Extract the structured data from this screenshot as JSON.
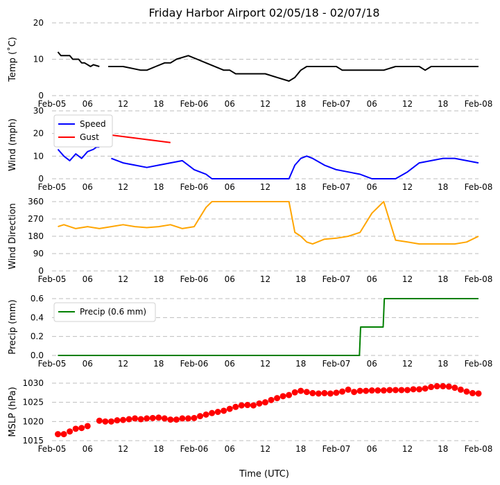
{
  "chart_data": {
    "title": "Friday Harbor Airport 02/05/18 - 02/07/18",
    "xlabel": "Time (UTC)",
    "x_range": [
      "2018-02-05 00:00",
      "2018-02-08 00:00"
    ],
    "x_tick_labels": [
      "Feb-05",
      "06",
      "12",
      "18",
      "Feb-06",
      "06",
      "12",
      "18",
      "Feb-07",
      "06",
      "12",
      "18",
      "Feb-08"
    ],
    "grid": "horizontal dashed",
    "panels": [
      {
        "type": "line",
        "ylabel": "Temp ($^\\circ$C)",
        "ylabel_display": "Temp (˚C)",
        "ylim": [
          0,
          20
        ],
        "yticks": [
          0,
          10,
          20
        ],
        "series": [
          {
            "color": "#000000",
            "x_hours": [
              1,
              1.5,
              3,
              3.5,
              4.5,
              5,
              5.5,
              6.5,
              7,
              8,
              8.5,
              9.5,
              10,
              12,
              15,
              16,
              17.5,
              19,
              20,
              21,
              23,
              24.5,
              26,
              29,
              30,
              31,
              32,
              33,
              34,
              35,
              36,
              38,
              40,
              41,
              42,
              43,
              45,
              46,
              48,
              49,
              50,
              52,
              54,
              56,
              58,
              60,
              62,
              63,
              64,
              66,
              68,
              70,
              72
            ],
            "values": [
              12,
              11,
              11,
              10,
              10,
              9,
              9,
              8,
              8.5,
              8,
              null,
              8,
              8,
              8,
              7,
              7,
              8,
              9,
              9,
              10,
              11,
              10,
              9,
              7,
              7,
              6,
              6,
              6,
              6,
              6,
              6,
              5,
              4,
              5,
              7,
              8,
              8,
              8,
              8,
              7,
              7,
              7,
              7,
              7,
              8,
              8,
              8,
              7,
              8,
              8,
              8,
              8,
              8
            ]
          }
        ]
      },
      {
        "type": "line",
        "ylabel": "Wind (mph)",
        "ylim": [
          0,
          30
        ],
        "yticks": [
          0,
          10,
          20,
          30
        ],
        "legend": "top-left",
        "series": [
          {
            "name": "Speed",
            "color": "#0000ff",
            "x_hours": [
              1,
              2,
              3,
              4,
              5,
              6,
              7,
              7.5,
              8,
              9,
              10,
              12,
              14,
              16,
              18,
              20,
              22,
              23,
              24,
              25,
              26,
              27,
              28,
              30,
              32,
              36,
              40,
              41,
              42,
              43,
              44,
              46,
              48,
              50,
              52,
              54,
              56,
              58,
              60,
              62,
              64,
              66,
              68,
              70,
              72
            ],
            "values": [
              13,
              10,
              8,
              11,
              9,
              12,
              13,
              14,
              14,
              null,
              9,
              7,
              6,
              5,
              6,
              7,
              8,
              6,
              4,
              3,
              2,
              0,
              0,
              0,
              0,
              0,
              0,
              6,
              9,
              10,
              9,
              6,
              4,
              3,
              2,
              0,
              0,
              0,
              3,
              7,
              8,
              9,
              9,
              8,
              7
            ]
          },
          {
            "name": "Gust",
            "color": "#ff0000",
            "x_hours": [
              2,
              4,
              5,
              6,
              7,
              8,
              20
            ],
            "values": [
              18,
              16,
              20,
              23,
              22,
              20,
              16
            ]
          }
        ]
      },
      {
        "type": "line",
        "ylabel": "Wind Direction",
        "ylim": [
          0,
          360
        ],
        "yticks": [
          0,
          90,
          180,
          270,
          360
        ],
        "series": [
          {
            "color": "#ffa500",
            "x_hours": [
              1,
              2,
              4,
              6,
              8,
              10,
              12,
              14,
              16,
              18,
              20,
              22,
              24,
              25,
              26,
              27,
              28,
              30,
              32,
              36,
              40,
              41,
              42,
              43,
              44,
              46,
              48,
              50,
              52,
              54,
              56,
              58,
              60,
              62,
              64,
              66,
              68,
              70,
              72
            ],
            "values": [
              230,
              240,
              220,
              230,
              220,
              230,
              240,
              230,
              225,
              230,
              240,
              220,
              230,
              280,
              330,
              360,
              360,
              360,
              360,
              360,
              360,
              200,
              180,
              150,
              140,
              165,
              170,
              180,
              200,
              300,
              360,
              160,
              150,
              140,
              140,
              140,
              140,
              150,
              180
            ]
          }
        ]
      },
      {
        "type": "line",
        "ylabel": "Precip (mm)",
        "ylim": [
          0,
          0.6
        ],
        "yticks": [
          0.0,
          0.2,
          0.4,
          0.6
        ],
        "legend": "top-left",
        "series": [
          {
            "name": "Precip (0.6 mm)",
            "color": "#008000",
            "x_hours": [
              1,
              51.9,
              52.1,
              55.9,
              56.1,
              72
            ],
            "values": [
              0,
              0,
              0.3,
              0.3,
              0.6,
              0.6
            ]
          }
        ]
      },
      {
        "type": "scatter",
        "ylabel": "MSLP (hPa)",
        "ylim": [
          1015,
          1030
        ],
        "yticks": [
          1015,
          1020,
          1025,
          1030
        ],
        "series": [
          {
            "color": "#ff0000",
            "x_hours": [
              1,
              2,
              3,
              4,
              5,
              6,
              8,
              9,
              10,
              11,
              12,
              13,
              14,
              15,
              16,
              17,
              18,
              19,
              20,
              21,
              22,
              23,
              24,
              25,
              26,
              27,
              28,
              29,
              30,
              31,
              32,
              33,
              34,
              35,
              36,
              37,
              38,
              39,
              40,
              41,
              42,
              43,
              44,
              45,
              46,
              47,
              48,
              49,
              50,
              51,
              52,
              53,
              54,
              55,
              56,
              57,
              58,
              59,
              60,
              61,
              62,
              63,
              64,
              65,
              66,
              67,
              68,
              69,
              70,
              71,
              72
            ],
            "values": [
              1016.7,
              1016.7,
              1017.4,
              1018.1,
              1018.3,
              1018.8,
              1020.2,
              1020.0,
              1020.0,
              1020.3,
              1020.4,
              1020.6,
              1020.8,
              1020.6,
              1020.8,
              1020.9,
              1021.0,
              1020.8,
              1020.5,
              1020.5,
              1020.8,
              1020.8,
              1020.9,
              1021.4,
              1021.8,
              1022.2,
              1022.5,
              1022.8,
              1023.3,
              1023.8,
              1024.2,
              1024.3,
              1024.2,
              1024.7,
              1025.0,
              1025.6,
              1026.1,
              1026.6,
              1026.9,
              1027.6,
              1028.0,
              1027.7,
              1027.4,
              1027.3,
              1027.4,
              1027.3,
              1027.5,
              1027.8,
              1028.3,
              1027.7,
              1028.0,
              1028.0,
              1028.1,
              1028.1,
              1028.1,
              1028.2,
              1028.2,
              1028.2,
              1028.2,
              1028.4,
              1028.4,
              1028.6,
              1029.0,
              1029.2,
              1029.2,
              1029.1,
              1028.8,
              1028.3,
              1027.8,
              1027.4,
              1027.3
            ]
          }
        ]
      }
    ]
  }
}
